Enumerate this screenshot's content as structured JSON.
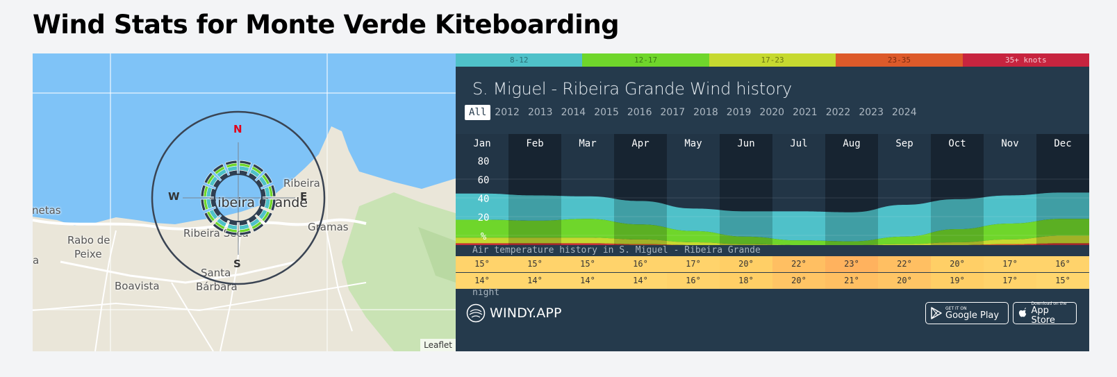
{
  "page": {
    "title": "Wind Stats for Monte Verde Kiteboarding"
  },
  "map": {
    "labels": {
      "ribeira_grande": "Ribeira Grande",
      "ribeirinha": "Ribeira",
      "ribeira_seca": "Ribeira Seca",
      "rabo_de_peixe_1": "Rabo de",
      "rabo_de_peixe_2": "Peixe",
      "santa_barbara_1": "Santa",
      "santa_barbara_2": "Bárbara",
      "boavista": "Boavista",
      "gramas": "Gramas",
      "netas": "netas",
      "left_edge": "a"
    },
    "compass": {
      "n": "N",
      "e": "E",
      "s": "S",
      "w": "W"
    },
    "attribution": "Leaflet",
    "colors": {
      "sea": "#7fc3f7",
      "land": "#eae6d9",
      "green": "#c9e3b4"
    }
  },
  "widget": {
    "legend": [
      {
        "label": "8-12",
        "color": "#4fc1c9"
      },
      {
        "label": "12-17",
        "color": "#6fd62b"
      },
      {
        "label": "17-23",
        "color": "#c6d930"
      },
      {
        "label": "23-35",
        "color": "#dd5a2a"
      },
      {
        "label": "35+ knots",
        "color": "#c7243f"
      }
    ],
    "title": "S. Miguel - Ribeira Grande Wind history",
    "years": [
      "All",
      "2012",
      "2013",
      "2014",
      "2015",
      "2016",
      "2017",
      "2018",
      "2019",
      "2020",
      "2021",
      "2022",
      "2023",
      "2024"
    ],
    "selected_year": "All",
    "temp_caption": "Air temperature history in S. Miguel - Ribeira Grande",
    "day_temps": [
      "15°",
      "15°",
      "15°",
      "16°",
      "17°",
      "20°",
      "22°",
      "23°",
      "22°",
      "20°",
      "17°",
      "16°"
    ],
    "night_temps": [
      "14°",
      "14°",
      "14°",
      "14°",
      "16°",
      "18°",
      "20°",
      "21°",
      "20°",
      "19°",
      "17°",
      "15°"
    ],
    "night_caption": "night",
    "brand": "WINDY.APP",
    "google_play": {
      "small": "GET IT ON",
      "big": "Google Play"
    },
    "app_store": {
      "small": "Download on the",
      "big": "App Store"
    }
  },
  "chart_data": {
    "type": "area",
    "title": "S. Miguel - Ribeira Grande Wind history",
    "categories": [
      "Jan",
      "Feb",
      "Mar",
      "Apr",
      "May",
      "Jun",
      "Jul",
      "Aug",
      "Sep",
      "Oct",
      "Nov",
      "Dec"
    ],
    "y_ticks": [
      "80",
      "60",
      "40",
      "20",
      "%"
    ],
    "ylim": [
      0,
      100
    ],
    "series": [
      {
        "name": "8-12",
        "color": "#4fc1c9",
        "values": [
          28,
          27,
          24,
          25,
          24,
          27,
          31,
          31,
          34,
          32,
          30,
          28
        ]
      },
      {
        "name": "12-17",
        "color": "#6fd62b",
        "values": [
          19,
          18,
          20,
          16,
          12,
          8,
          5,
          4,
          8,
          14,
          17,
          18
        ]
      },
      {
        "name": "17-23",
        "color": "#c6d930",
        "values": [
          6,
          6,
          6,
          5,
          3,
          1,
          0,
          0,
          1,
          3,
          5,
          8
        ]
      },
      {
        "name": "23-35",
        "color": "#dd5a2a",
        "values": [
          1,
          1,
          1,
          1,
          0,
          0,
          0,
          0,
          0,
          0,
          1,
          1
        ]
      },
      {
        "name": "35+ knots",
        "color": "#c7243f",
        "values": [
          1,
          1,
          1,
          0,
          0,
          0,
          0,
          0,
          0,
          0,
          0,
          1
        ]
      }
    ]
  }
}
